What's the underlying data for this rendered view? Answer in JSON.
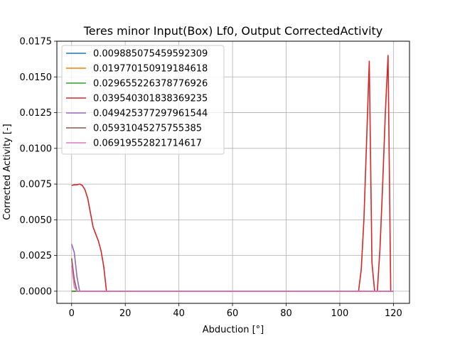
{
  "chart_data": {
    "type": "line",
    "title": "Teres minor Input(Box) Lf0, Output CorrectedActivity",
    "xlabel": "Abduction [°]",
    "ylabel": "Corrected Activity [-]",
    "xlim": [
      -5.5,
      126
    ],
    "ylim": [
      -0.00085,
      0.0175
    ],
    "xticks": [
      0,
      20,
      40,
      60,
      80,
      100,
      120
    ],
    "xtick_labels": [
      "0",
      "20",
      "40",
      "60",
      "80",
      "100",
      "120"
    ],
    "yticks": [
      0.0,
      0.0025,
      0.005,
      0.0075,
      0.01,
      0.0125,
      0.015,
      0.0175
    ],
    "ytick_labels": [
      "0.0000",
      "0.0025",
      "0.0050",
      "0.0075",
      "0.0100",
      "0.0125",
      "0.0150",
      "0.0175"
    ],
    "grid": true,
    "legend_position": "top-left",
    "series": [
      {
        "name": "0.009885075459592309",
        "color": "#1f77b4",
        "x": [
          0,
          120
        ],
        "y": [
          0,
          0
        ]
      },
      {
        "name": "0.019770150919184618",
        "color": "#ff7f0e",
        "x": [
          0,
          120
        ],
        "y": [
          0,
          0
        ]
      },
      {
        "name": "0.029655226378776926",
        "color": "#2ca02c",
        "x": [
          0,
          120
        ],
        "y": [
          0,
          0
        ]
      },
      {
        "name": "0.039540301838369235",
        "color": "#d62728",
        "x": [
          0,
          1,
          2,
          3,
          4,
          5,
          6,
          7,
          8,
          9,
          10,
          11,
          12,
          13,
          14,
          106,
          107,
          108,
          109,
          110,
          111,
          112,
          113,
          114,
          115,
          116,
          117,
          118,
          119,
          120
        ],
        "y": [
          0.0074,
          0.00745,
          0.00745,
          0.0075,
          0.0074,
          0.0071,
          0.0065,
          0.0055,
          0.0045,
          0.004,
          0.0035,
          0.0028,
          0.0017,
          0.0,
          0.0,
          0.0,
          0.0,
          0.0015,
          0.005,
          0.0105,
          0.0161,
          0.002,
          0.0,
          0.0,
          0.003,
          0.0075,
          0.0125,
          0.0165,
          0.0,
          0.0
        ]
      },
      {
        "name": "0.049425377297961544",
        "color": "#9467bd",
        "x": [
          0,
          1,
          2,
          3,
          4,
          120
        ],
        "y": [
          0.0033,
          0.0027,
          0.001,
          0.0,
          0.0,
          0.0
        ]
      },
      {
        "name": "0.05931045275755385",
        "color": "#8c564b",
        "x": [
          0,
          1,
          2,
          120
        ],
        "y": [
          0.0023,
          0.0008,
          0.0,
          0.0
        ]
      },
      {
        "name": "0.06919552821714617",
        "color": "#e377c2",
        "x": [
          0,
          1,
          2,
          120
        ],
        "y": [
          0.0018,
          0.0003,
          0.0,
          0.0
        ]
      }
    ]
  }
}
